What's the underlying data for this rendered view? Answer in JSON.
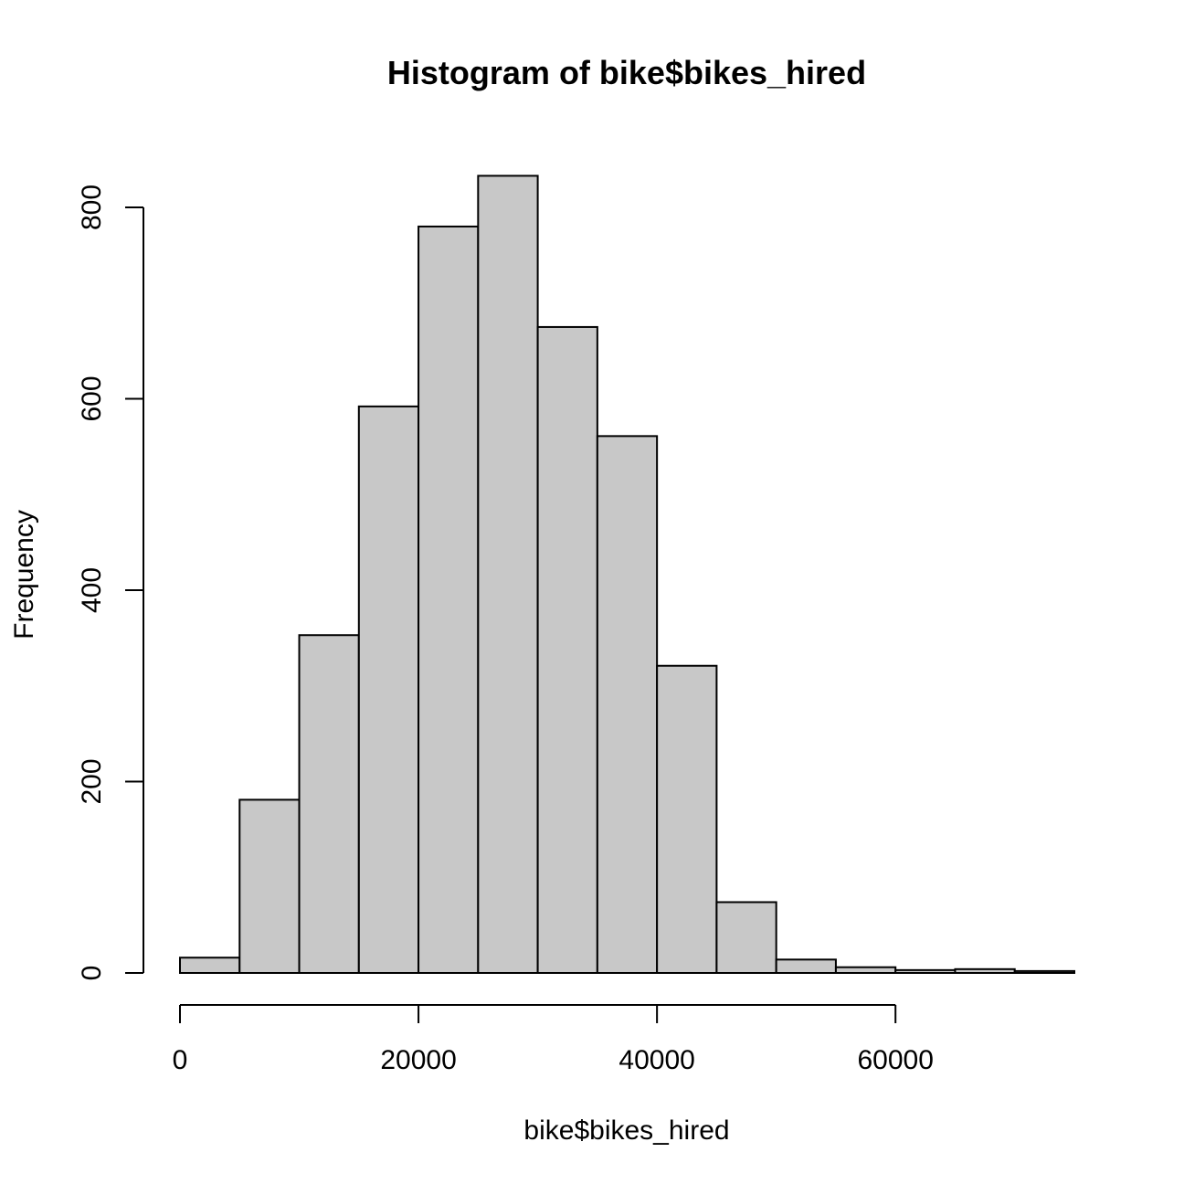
{
  "chart_data": {
    "type": "bar",
    "title": "Histogram of bike$bikes_hired",
    "xlabel": "bike$bikes_hired",
    "ylabel": "Frequency",
    "bins": [
      {
        "start": 0,
        "end": 5000,
        "count": 16
      },
      {
        "start": 5000,
        "end": 10000,
        "count": 181
      },
      {
        "start": 10000,
        "end": 15000,
        "count": 353
      },
      {
        "start": 15000,
        "end": 20000,
        "count": 592
      },
      {
        "start": 20000,
        "end": 25000,
        "count": 780
      },
      {
        "start": 25000,
        "end": 30000,
        "count": 833
      },
      {
        "start": 30000,
        "end": 35000,
        "count": 675
      },
      {
        "start": 35000,
        "end": 40000,
        "count": 561
      },
      {
        "start": 40000,
        "end": 45000,
        "count": 321
      },
      {
        "start": 45000,
        "end": 50000,
        "count": 74
      },
      {
        "start": 50000,
        "end": 55000,
        "count": 14
      },
      {
        "start": 55000,
        "end": 60000,
        "count": 6
      },
      {
        "start": 60000,
        "end": 65000,
        "count": 3
      },
      {
        "start": 65000,
        "end": 70000,
        "count": 4
      },
      {
        "start": 70000,
        "end": 75000,
        "count": 2
      }
    ],
    "x_ticks": [
      0,
      20000,
      40000,
      60000
    ],
    "y_ticks": [
      0,
      200,
      400,
      600,
      800
    ],
    "xlim": [
      0,
      75000
    ],
    "ylim": [
      0,
      800
    ],
    "bar_color": "#c8c8c8",
    "grid": false,
    "legend": "none"
  }
}
